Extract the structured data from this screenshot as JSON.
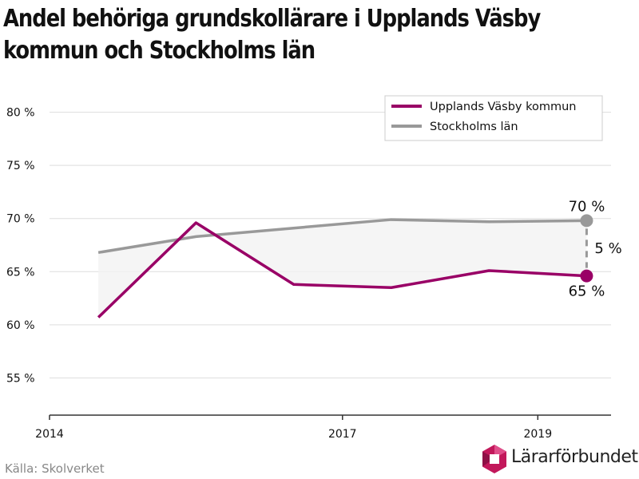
{
  "title_lines": [
    "Andel behöriga grundskollärare i Upplands Väsby",
    "kommun och Stockholms län"
  ],
  "source": "Källa: Skolverket",
  "brand": "Lärarförbundet",
  "chart_data": {
    "type": "line",
    "title": "Andel behöriga grundskollärare i Upplands Väsby kommun och Stockholms län",
    "x": [
      2014.5,
      2015.5,
      2016.5,
      2017.5,
      2018.5,
      2019.5
    ],
    "xlim": [
      2014,
      2019.75
    ],
    "x_ticks": [
      2014,
      2017,
      2019
    ],
    "x_tick_labels": [
      "2014",
      "2017",
      "2019"
    ],
    "ylim": [
      51.5,
      82
    ],
    "y_ticks": [
      55,
      60,
      65,
      70,
      75,
      80
    ],
    "y_tick_labels": [
      "55 %",
      "60 %",
      "65 %",
      "70 %",
      "75 %",
      "80 %"
    ],
    "grid": true,
    "legend_position": "top-right",
    "series": [
      {
        "name": "Upplands Väsby kommun",
        "color": "#990066",
        "values": [
          60.7,
          69.6,
          63.8,
          63.5,
          65.1,
          64.6
        ],
        "end_label": "65 %"
      },
      {
        "name": "Stockholms län",
        "color": "#999999",
        "values": [
          66.8,
          68.3,
          69.1,
          69.9,
          69.7,
          69.8
        ],
        "end_label": "70 %"
      }
    ],
    "difference_label": "5 %"
  }
}
